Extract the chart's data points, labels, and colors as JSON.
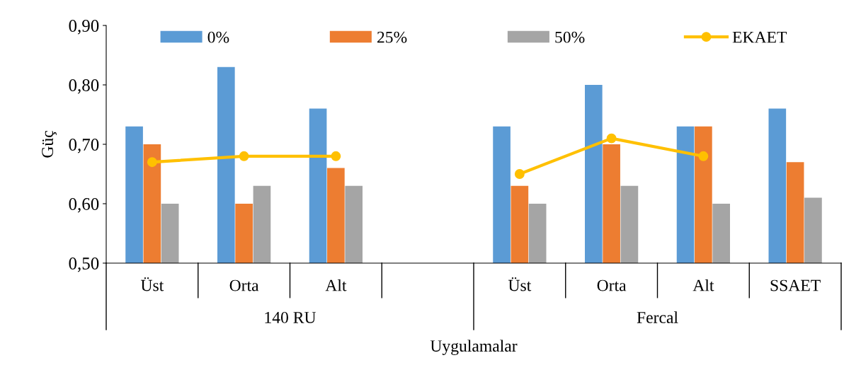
{
  "chart_data": {
    "type": "bar",
    "xlabel": "Uygulamalar",
    "ylabel": "Güç",
    "categories": [
      "Üst",
      "Orta",
      "Alt",
      null,
      "Üst",
      "Orta",
      "Alt",
      "SSAET"
    ],
    "series": [
      {
        "name": "0%",
        "color": "#5b9bd5",
        "values": [
          0.73,
          0.83,
          0.76,
          null,
          0.73,
          0.8,
          0.73,
          0.76
        ]
      },
      {
        "name": "25%",
        "color": "#ed7d31",
        "values": [
          0.7,
          0.6,
          0.66,
          null,
          0.63,
          0.7,
          0.73,
          0.67
        ]
      },
      {
        "name": "50%",
        "color": "#a5a5a5",
        "values": [
          0.6,
          0.63,
          0.63,
          null,
          0.6,
          0.63,
          0.6,
          0.61
        ]
      },
      {
        "name": "EKAET",
        "type": "line",
        "color": "#ffc000",
        "marker": "circle",
        "values": [
          0.67,
          0.68,
          0.68,
          null,
          0.65,
          0.71,
          0.68,
          null
        ]
      }
    ],
    "annotations": [
      "140 RU",
      "Fercal"
    ],
    "ylim": [
      0.5,
      0.9
    ],
    "yticks": [
      {
        "value": 0.5,
        "label": "0,50"
      },
      {
        "value": 0.6,
        "label": "0,60"
      },
      {
        "value": 0.7,
        "label": "0,70"
      },
      {
        "value": 0.8,
        "label": "0,80"
      },
      {
        "value": 0.9,
        "label": "0,90"
      }
    ],
    "grid": false,
    "legend": "top"
  }
}
